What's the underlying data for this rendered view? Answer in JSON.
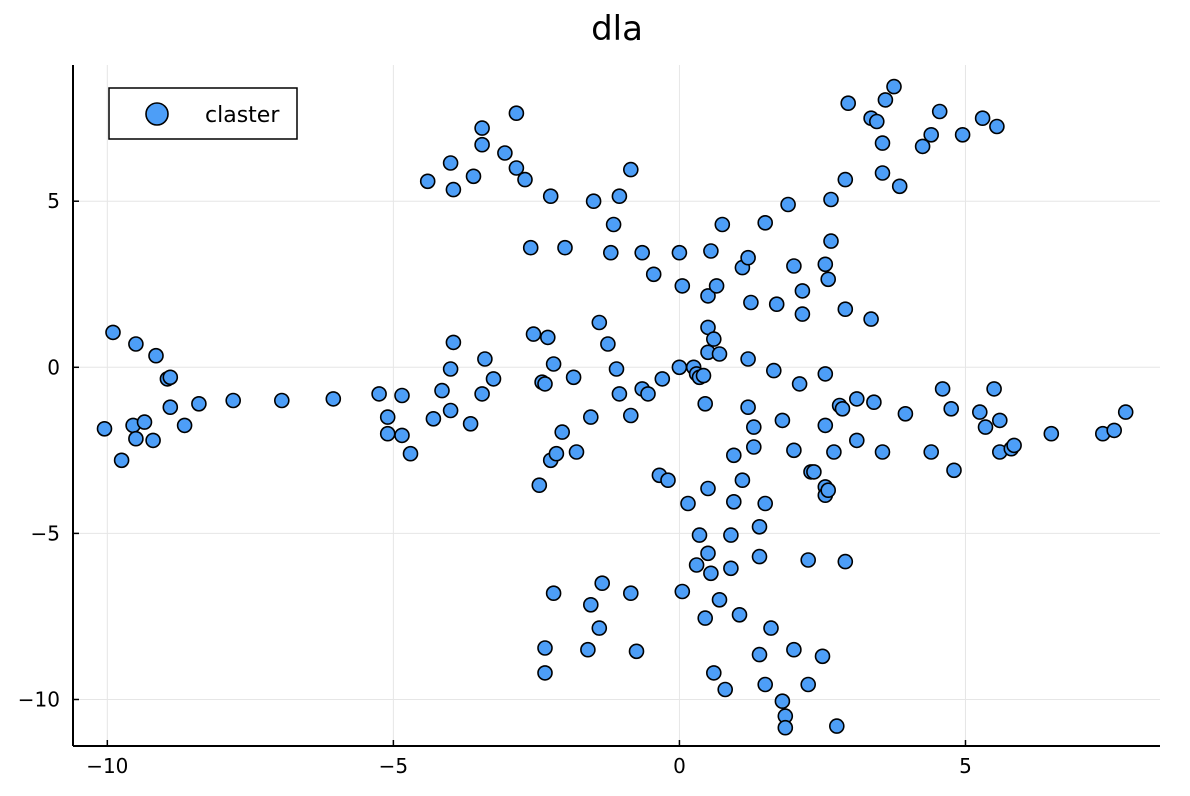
{
  "chart_data": {
    "type": "scatter",
    "title": "dla",
    "xlabel": "",
    "ylabel": "",
    "xlim": [
      -10.6,
      8.4
    ],
    "ylim": [
      -11.4,
      9.1
    ],
    "xticks": [
      -10,
      -5,
      0,
      5
    ],
    "yticks": [
      -10,
      -5,
      0,
      5
    ],
    "xtick_labels": [
      "−10",
      "−5",
      "0",
      "5"
    ],
    "ytick_labels": [
      "−10",
      "−5",
      "0",
      "5"
    ],
    "grid": true,
    "legend": {
      "position": "top-left",
      "entries": [
        "claster"
      ]
    },
    "series": [
      {
        "name": "claster",
        "color": "#4d9ef7",
        "points": [
          [
            -10.05,
            -1.85
          ],
          [
            -9.75,
            -2.8
          ],
          [
            -9.55,
            -1.75
          ],
          [
            -9.5,
            -2.15
          ],
          [
            -9.5,
            0.7
          ],
          [
            -9.35,
            -1.65
          ],
          [
            -9.2,
            -2.2
          ],
          [
            -9.15,
            0.35
          ],
          [
            -9.9,
            1.05
          ],
          [
            -8.95,
            -0.35
          ],
          [
            -8.9,
            -0.3
          ],
          [
            -8.9,
            -1.2
          ],
          [
            -8.65,
            -1.75
          ],
          [
            -8.4,
            -1.1
          ],
          [
            -7.8,
            -1.0
          ],
          [
            -6.95,
            -1.0
          ],
          [
            -6.05,
            -0.95
          ],
          [
            -5.25,
            -0.8
          ],
          [
            -5.1,
            -1.5
          ],
          [
            -5.1,
            -2.0
          ],
          [
            -4.85,
            -0.85
          ],
          [
            -4.85,
            -2.05
          ],
          [
            -4.7,
            -2.6
          ],
          [
            -4.4,
            5.6
          ],
          [
            -4.3,
            -1.55
          ],
          [
            -4.15,
            -0.7
          ],
          [
            -4.0,
            6.15
          ],
          [
            -3.95,
            5.35
          ],
          [
            -3.95,
            0.75
          ],
          [
            -4.0,
            -0.05
          ],
          [
            -4.0,
            -1.3
          ],
          [
            -3.65,
            -1.7
          ],
          [
            -3.6,
            5.75
          ],
          [
            -3.45,
            6.7
          ],
          [
            -3.45,
            7.2
          ],
          [
            -3.45,
            -0.8
          ],
          [
            -3.4,
            0.25
          ],
          [
            -3.25,
            -0.35
          ],
          [
            -3.05,
            6.45
          ],
          [
            -2.85,
            7.65
          ],
          [
            -2.85,
            6.0
          ],
          [
            -2.7,
            5.65
          ],
          [
            -2.6,
            3.6
          ],
          [
            -2.55,
            1.0
          ],
          [
            -2.45,
            -3.55
          ],
          [
            -2.4,
            -0.45
          ],
          [
            -2.35,
            -0.5
          ],
          [
            -2.35,
            -8.45
          ],
          [
            -2.35,
            -9.2
          ],
          [
            -2.3,
            0.9
          ],
          [
            -2.25,
            5.15
          ],
          [
            -2.25,
            -2.8
          ],
          [
            -2.2,
            0.1
          ],
          [
            -2.2,
            -6.8
          ],
          [
            -2.15,
            -2.6
          ],
          [
            -2.05,
            -1.95
          ],
          [
            -2.0,
            3.6
          ],
          [
            -1.85,
            -0.3
          ],
          [
            -1.8,
            -2.55
          ],
          [
            -1.55,
            -1.5
          ],
          [
            -1.5,
            5.0
          ],
          [
            -1.55,
            -7.15
          ],
          [
            -1.6,
            -8.5
          ],
          [
            -1.4,
            1.35
          ],
          [
            -1.4,
            -7.85
          ],
          [
            -1.35,
            -6.5
          ],
          [
            -1.25,
            0.7
          ],
          [
            -1.2,
            3.45
          ],
          [
            -1.15,
            4.3
          ],
          [
            -1.1,
            -0.05
          ],
          [
            -1.05,
            -0.8
          ],
          [
            -1.05,
            5.15
          ],
          [
            -0.85,
            5.95
          ],
          [
            -0.85,
            -1.45
          ],
          [
            -0.85,
            -6.8
          ],
          [
            -0.75,
            -8.55
          ],
          [
            -0.65,
            -0.65
          ],
          [
            -0.65,
            3.45
          ],
          [
            -0.55,
            -0.8
          ],
          [
            -0.45,
            2.8
          ],
          [
            -0.35,
            -3.25
          ],
          [
            -0.3,
            -0.35
          ],
          [
            -0.2,
            -3.4
          ],
          [
            0.0,
            0.0
          ],
          [
            0.0,
            3.45
          ],
          [
            0.05,
            -6.75
          ],
          [
            0.05,
            2.45
          ],
          [
            0.15,
            -4.1
          ],
          [
            0.25,
            0.0
          ],
          [
            0.3,
            -5.95
          ],
          [
            0.3,
            -0.2
          ],
          [
            0.35,
            -0.3
          ],
          [
            0.35,
            -5.05
          ],
          [
            0.42,
            -0.25
          ],
          [
            0.45,
            -1.1
          ],
          [
            0.45,
            -7.55
          ],
          [
            0.5,
            -3.65
          ],
          [
            0.5,
            -5.6
          ],
          [
            0.55,
            -6.2
          ],
          [
            0.5,
            1.2
          ],
          [
            0.5,
            2.15
          ],
          [
            0.5,
            0.45
          ],
          [
            0.6,
            -9.2
          ],
          [
            0.6,
            0.85
          ],
          [
            0.55,
            3.5
          ],
          [
            0.65,
            2.45
          ],
          [
            0.7,
            0.4
          ],
          [
            0.7,
            -7.0
          ],
          [
            0.75,
            4.3
          ],
          [
            0.8,
            -9.7
          ],
          [
            0.9,
            -6.05
          ],
          [
            0.9,
            -5.05
          ],
          [
            0.95,
            -4.05
          ],
          [
            0.95,
            -2.65
          ],
          [
            1.05,
            -7.45
          ],
          [
            1.1,
            3.0
          ],
          [
            1.1,
            -3.4
          ],
          [
            1.2,
            3.3
          ],
          [
            1.2,
            0.25
          ],
          [
            1.2,
            -1.2
          ],
          [
            1.25,
            1.95
          ],
          [
            1.3,
            -1.8
          ],
          [
            1.3,
            -2.4
          ],
          [
            1.4,
            -4.8
          ],
          [
            1.4,
            -5.7
          ],
          [
            1.4,
            -8.65
          ],
          [
            1.5,
            -9.55
          ],
          [
            1.5,
            4.35
          ],
          [
            1.5,
            -4.1
          ],
          [
            1.6,
            -7.85
          ],
          [
            1.65,
            -0.1
          ],
          [
            1.7,
            1.9
          ],
          [
            1.8,
            -1.6
          ],
          [
            1.8,
            -10.05
          ],
          [
            1.85,
            -10.5
          ],
          [
            1.85,
            -10.85
          ],
          [
            1.9,
            4.9
          ],
          [
            2.0,
            3.05
          ],
          [
            2.0,
            -2.5
          ],
          [
            2.0,
            -8.5
          ],
          [
            2.1,
            -0.5
          ],
          [
            2.15,
            2.3
          ],
          [
            2.15,
            1.6
          ],
          [
            2.25,
            -5.8
          ],
          [
            2.25,
            -9.55
          ],
          [
            2.3,
            -3.15
          ],
          [
            2.35,
            -3.15
          ],
          [
            2.5,
            -8.7
          ],
          [
            2.55,
            -1.75
          ],
          [
            2.55,
            -0.2
          ],
          [
            2.55,
            3.1
          ],
          [
            2.55,
            -3.6
          ],
          [
            2.55,
            -3.85
          ],
          [
            2.6,
            -3.7
          ],
          [
            2.6,
            2.65
          ],
          [
            2.65,
            3.8
          ],
          [
            2.65,
            5.05
          ],
          [
            2.7,
            -2.55
          ],
          [
            2.75,
            -10.8
          ],
          [
            2.8,
            -1.15
          ],
          [
            2.85,
            -1.25
          ],
          [
            2.9,
            -5.85
          ],
          [
            2.9,
            1.75
          ],
          [
            2.9,
            5.65
          ],
          [
            2.95,
            7.95
          ],
          [
            3.1,
            -2.2
          ],
          [
            3.1,
            -0.95
          ],
          [
            3.35,
            7.5
          ],
          [
            3.35,
            1.45
          ],
          [
            3.4,
            -1.05
          ],
          [
            3.45,
            7.4
          ],
          [
            3.55,
            6.75
          ],
          [
            3.55,
            5.85
          ],
          [
            3.55,
            -2.55
          ],
          [
            3.6,
            8.05
          ],
          [
            3.75,
            8.45
          ],
          [
            3.85,
            5.45
          ],
          [
            3.95,
            -1.4
          ],
          [
            4.25,
            6.65
          ],
          [
            4.4,
            -2.55
          ],
          [
            4.4,
            7.0
          ],
          [
            4.55,
            7.7
          ],
          [
            4.6,
            -0.65
          ],
          [
            4.75,
            -1.25
          ],
          [
            4.8,
            -3.1
          ],
          [
            4.95,
            7.0
          ],
          [
            5.25,
            -1.35
          ],
          [
            5.3,
            7.5
          ],
          [
            5.35,
            -1.8
          ],
          [
            5.5,
            -0.65
          ],
          [
            5.55,
            7.25
          ],
          [
            5.6,
            -2.55
          ],
          [
            5.6,
            -1.6
          ],
          [
            5.8,
            -2.45
          ],
          [
            5.85,
            -2.35
          ],
          [
            6.5,
            -2.0
          ],
          [
            7.4,
            -2.0
          ],
          [
            7.6,
            -1.9
          ],
          [
            7.8,
            -1.35
          ]
        ]
      }
    ]
  }
}
